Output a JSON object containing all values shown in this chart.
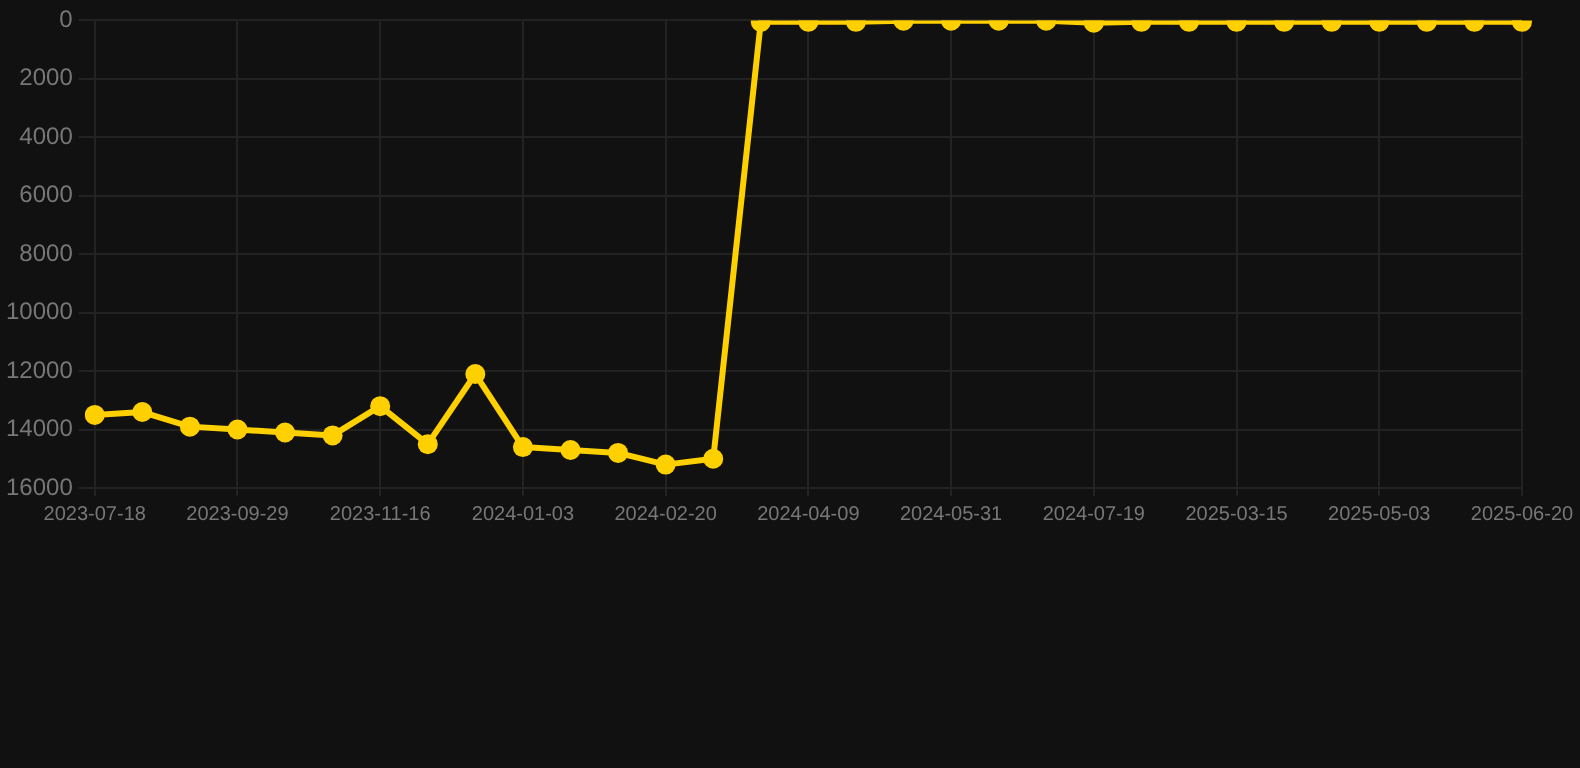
{
  "chart_data": {
    "type": "line",
    "categories": [
      "2023-07-18",
      null,
      null,
      "2023-09-29",
      null,
      null,
      "2023-11-16",
      null,
      null,
      "2024-01-03",
      null,
      null,
      "2024-02-20",
      null,
      null,
      "2024-04-09",
      null,
      null,
      "2024-05-31",
      null,
      null,
      "2024-07-19",
      null,
      null,
      "2025-03-15",
      null,
      null,
      "2025-05-03",
      null,
      null,
      "2025-06-20"
    ],
    "series": [
      {
        "color": "#ffd000",
        "values": [
          13500,
          13400,
          13900,
          14000,
          14100,
          14200,
          13200,
          14500,
          12100,
          14600,
          14700,
          14800,
          15200,
          15000,
          50,
          50,
          50,
          10,
          10,
          10,
          10,
          80,
          50,
          50,
          50,
          50,
          50,
          50,
          50,
          50,
          50
        ]
      }
    ],
    "ylim": [
      16000,
      0
    ],
    "yticks": [
      0,
      2000,
      4000,
      6000,
      8000,
      10000,
      12000,
      14000,
      16000
    ],
    "grid": true,
    "legend": false,
    "marker": "circle",
    "line_style": "solid"
  }
}
